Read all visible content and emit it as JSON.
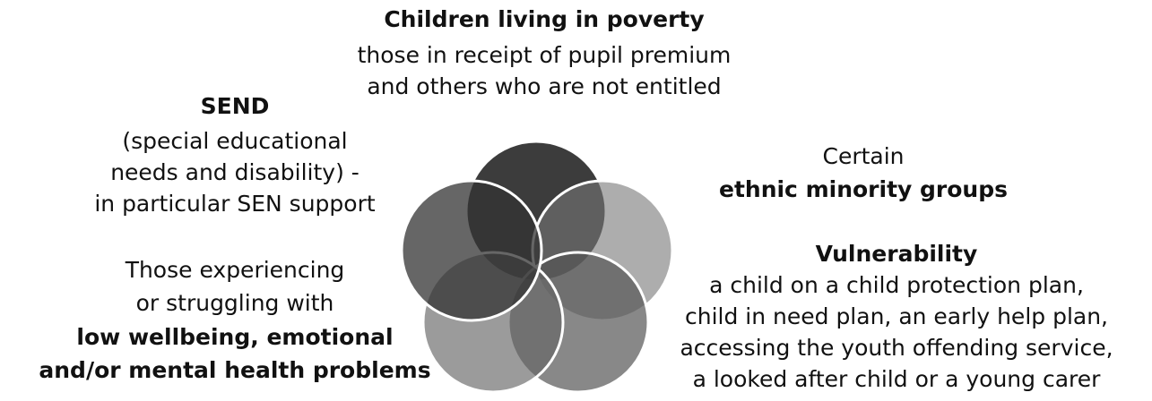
{
  "groups": {
    "poverty": {
      "lines": [
        "Children living in poverty",
        "those in receipt of pupil premium",
        "and others who are not entitled"
      ]
    },
    "send": {
      "lines": [
        "SEND",
        "(special educational",
        "needs and disability) -",
        "in particular SEN support"
      ]
    },
    "ethnic": {
      "lines": [
        "Certain",
        "ethnic minority groups"
      ]
    },
    "vulnerability": {
      "lines": [
        "Vulnerability",
        "a child on a child protection plan,",
        "child in need plan, an early help plan,",
        "accessing the youth offending service,",
        "a looked after child or a young carer"
      ]
    },
    "wellbeing": {
      "lines": [
        "Those experiencing",
        "or struggling with",
        "low wellbeing, emotional",
        "and/or mental health problems"
      ]
    }
  }
}
